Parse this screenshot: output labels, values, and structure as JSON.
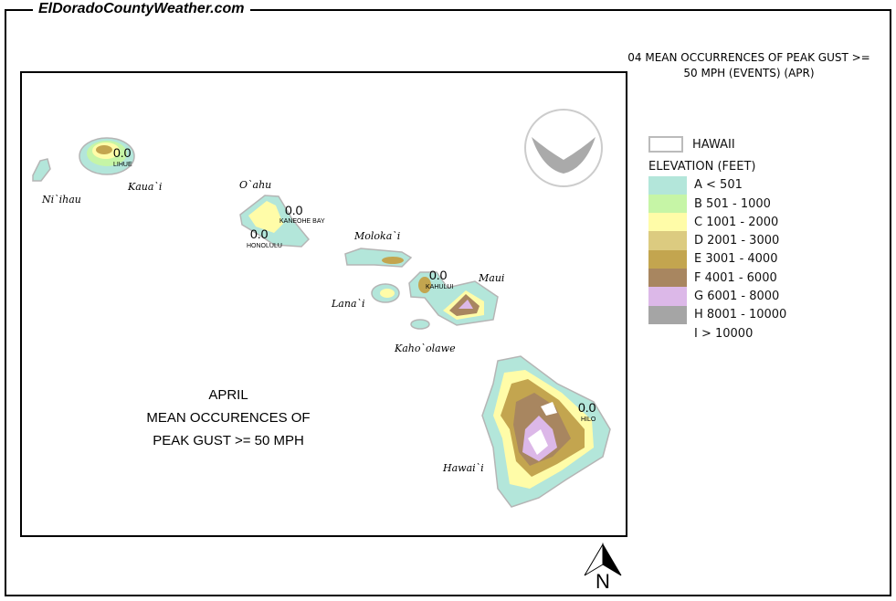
{
  "site_name": "ElDoradoCountyWeather.com",
  "title": "04 MEAN OCCURRENCES OF PEAK GUST >= 50 MPH (EVENTS) (APR)",
  "title_lines": [
    "04 MEAN OCCURRENCES OF PEAK GUST >=",
    "50 MPH (EVENTS) (APR)"
  ],
  "map_text": [
    "APRIL",
    "MEAN OCCURENCES OF",
    "PEAK GUST >= 50 MPH"
  ],
  "logo": "NOAA",
  "north_label": "N",
  "legend": {
    "boundary_label": "HAWAII",
    "elevation_title": "ELEVATION (FEET)",
    "classes": [
      {
        "label": "A < 501",
        "color": "#b3e6da"
      },
      {
        "label": "B 501 - 1000",
        "color": "#c6f5a6"
      },
      {
        "label": "C 1001 - 2000",
        "color": "#fffca8"
      },
      {
        "label": "D 2001 - 3000",
        "color": "#dccb80"
      },
      {
        "label": "E 3001 - 4000",
        "color": "#c3a54f"
      },
      {
        "label": "F 4001 - 6000",
        "color": "#a88660"
      },
      {
        "label": "G 6001 - 8000",
        "color": "#dcb8e8"
      },
      {
        "label": "H 8001 - 10000",
        "color": "#a5a5a5"
      },
      {
        "label": "I > 10000",
        "color": "#ffffff"
      }
    ]
  },
  "islands": [
    "Ni`ihau",
    "Kaua`i",
    "O`ahu",
    "Moloka`i",
    "Lana`i",
    "Maui",
    "Kaho`olawe",
    "Hawai`i"
  ],
  "stations": [
    {
      "name": "LIHUE",
      "value": "0.0"
    },
    {
      "name": "KANEOHE BAY",
      "value": "0.0"
    },
    {
      "name": "HONOLULU",
      "value": "0.0"
    },
    {
      "name": "KAHULUI",
      "value": "0.0"
    },
    {
      "name": "HILO",
      "value": "0.0"
    }
  ]
}
